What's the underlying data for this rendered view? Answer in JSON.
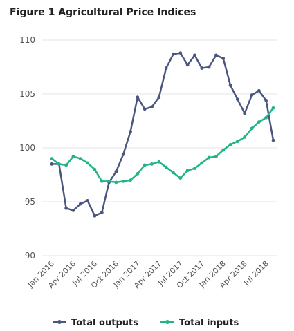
{
  "title": "Figure 1 Agricultural Price Indices",
  "colors": {
    "outputs": "#4a5580",
    "inputs": "#1fb589",
    "grid": "#e4e4e4"
  },
  "chart_data": {
    "type": "line",
    "title": "Figure 1 Agricultural Price Indices",
    "xlabel": "",
    "ylabel": "",
    "ylim": [
      90,
      110
    ],
    "yticks": [
      90,
      95,
      100,
      105,
      110
    ],
    "grid": true,
    "legend_position": "bottom",
    "categories": [
      "Jan 2016",
      "Feb 2016",
      "Mar 2016",
      "Apr 2016",
      "May 2016",
      "Jun 2016",
      "Jul 2016",
      "Aug 2016",
      "Sep 2016",
      "Oct 2016",
      "Nov 2016",
      "Dec 2016",
      "Jan 2017",
      "Feb 2017",
      "Mar 2017",
      "Apr 2017",
      "May 2017",
      "Jun 2017",
      "Jul 2017",
      "Aug 2017",
      "Sep 2017",
      "Oct 2017",
      "Nov 2017",
      "Dec 2017",
      "Jan 2018",
      "Feb 2018",
      "Mar 2018",
      "Apr 2018",
      "May 2018",
      "Jun 2018",
      "Jul 2018",
      "Aug 2018"
    ],
    "tick_labels": [
      "Jan 2016",
      "Apr 2016",
      "Jul 2016",
      "Oct 2016",
      "Jan 2017",
      "Apr 2017",
      "Jul 2017",
      "Oct 2017",
      "Jan 2018",
      "Apr 2018",
      "Jul 2018"
    ],
    "series": [
      {
        "name": "Total outputs",
        "color": "#4a5580",
        "values": [
          98.5,
          98.5,
          94.4,
          94.2,
          94.8,
          95.1,
          93.7,
          94.0,
          96.8,
          97.8,
          99.4,
          101.5,
          104.7,
          103.6,
          103.8,
          104.7,
          107.4,
          108.7,
          108.8,
          107.7,
          108.6,
          107.4,
          107.5,
          108.6,
          108.3,
          105.8,
          104.5,
          103.2,
          104.9,
          105.3,
          104.4,
          100.7
        ]
      },
      {
        "name": "Total inputs",
        "color": "#1fb589",
        "values": [
          99.0,
          98.5,
          98.4,
          99.2,
          99.0,
          98.6,
          98.0,
          96.9,
          96.9,
          96.8,
          96.9,
          97.0,
          97.6,
          98.4,
          98.5,
          98.7,
          98.2,
          97.7,
          97.2,
          97.9,
          98.1,
          98.6,
          99.1,
          99.2,
          99.8,
          100.3,
          100.6,
          101.0,
          101.8,
          102.4,
          102.8,
          103.7
        ]
      }
    ]
  }
}
